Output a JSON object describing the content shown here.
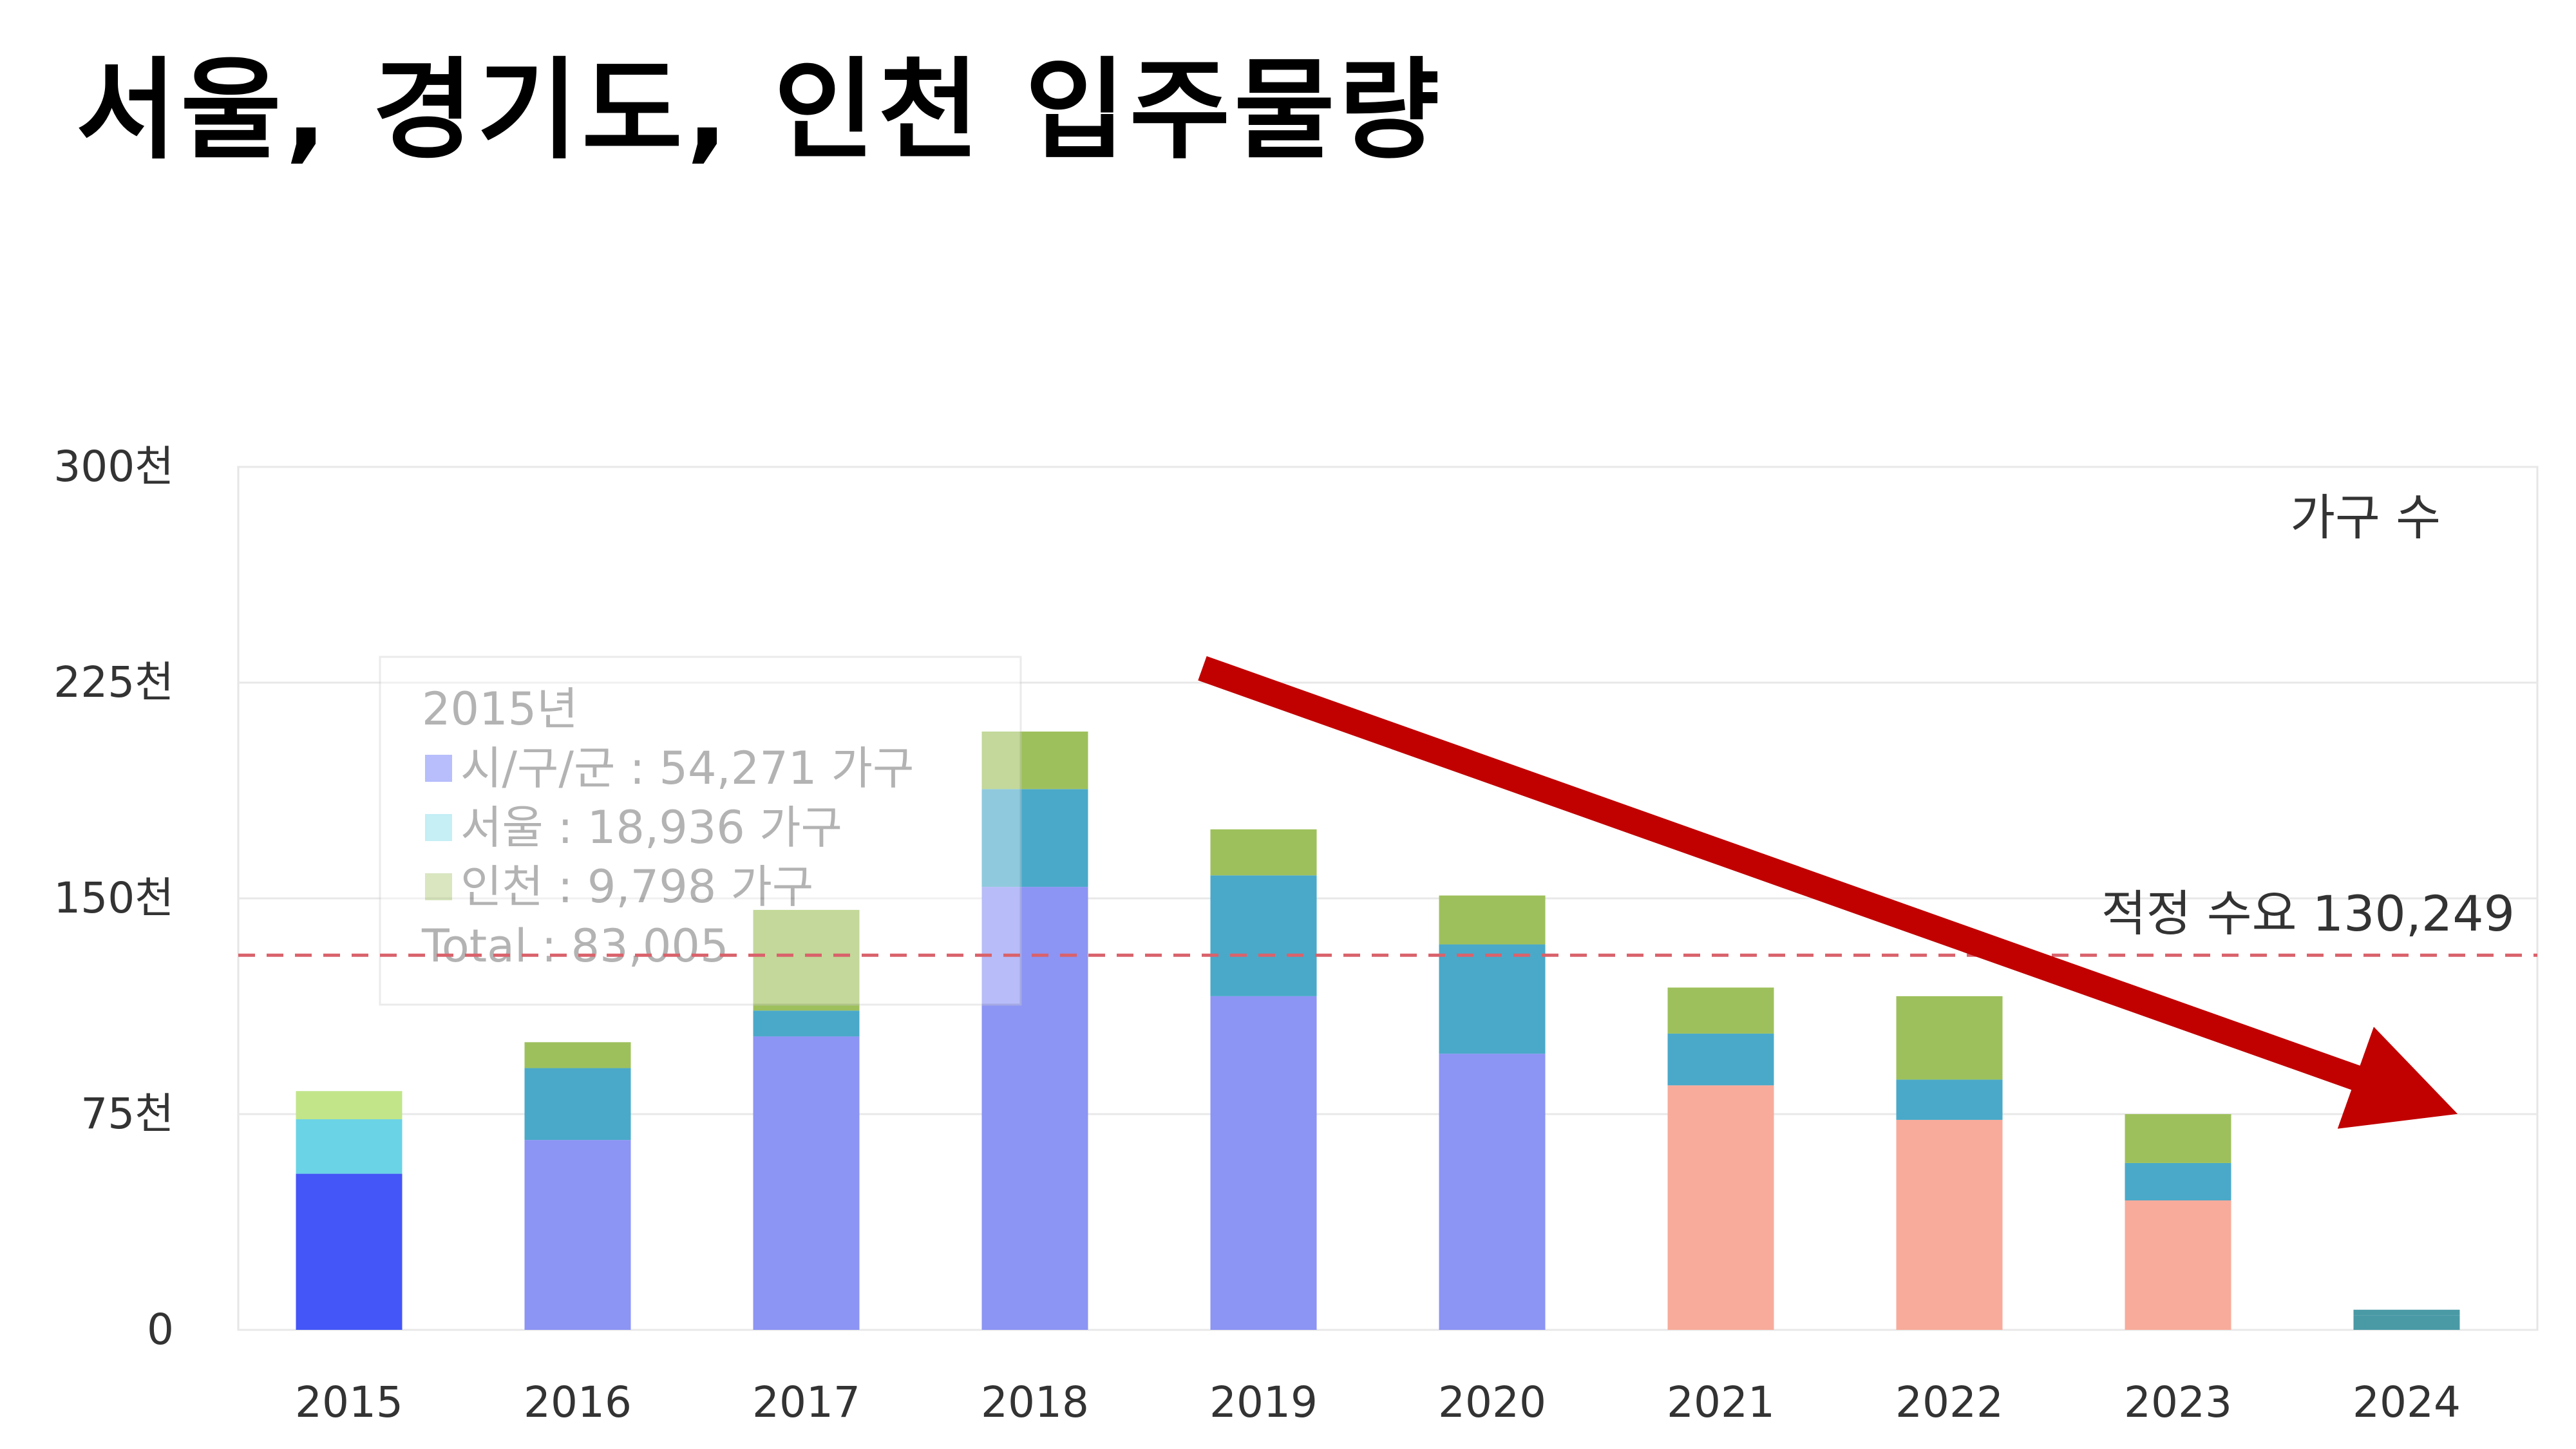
{
  "page": {
    "title": "서울, 경기도, 인천 입주물량"
  },
  "chart_data": {
    "type": "bar",
    "stacked": true,
    "categories": [
      "2015",
      "2016",
      "2017",
      "2018",
      "2019",
      "2020",
      "2021",
      "2022",
      "2023",
      "2024"
    ],
    "series": [
      {
        "name": "시/구/군",
        "values": [
          54271,
          66000,
          102000,
          154000,
          116000,
          96000,
          85000,
          73000,
          45000,
          0
        ]
      },
      {
        "name": "서울",
        "values": [
          18936,
          25000,
          9000,
          34000,
          42000,
          38000,
          18000,
          14000,
          13000,
          5000
        ]
      },
      {
        "name": "인천",
        "values": [
          9798,
          9000,
          35000,
          20000,
          16000,
          17000,
          16000,
          29000,
          17000,
          2000
        ]
      }
    ],
    "bar_colors": [
      [
        "#4456f7",
        "#6ad3e6",
        "#c2e58a"
      ],
      [
        "#8c94f4",
        "#4aa9c9",
        "#9ec05c"
      ],
      [
        "#8c94f4",
        "#4aa9c9",
        "#9ec05c"
      ],
      [
        "#8c94f4",
        "#4aa9c9",
        "#9ec05c"
      ],
      [
        "#8c94f4",
        "#4aa9c9",
        "#9ec05c"
      ],
      [
        "#8c94f4",
        "#4aa9c9",
        "#9ec05c"
      ],
      [
        "#f8ab9b",
        "#4aa9c9",
        "#9ec05c"
      ],
      [
        "#f8ab9b",
        "#4aa9c9",
        "#9ec05c"
      ],
      [
        "#f8ab9b",
        "#4aa9c9",
        "#9ec05c"
      ],
      [
        "#f8ab9b",
        "#4a9aa6",
        "#4a9aa6"
      ]
    ],
    "y_ticks": [
      0,
      75000,
      150000,
      225000,
      300000
    ],
    "y_tick_labels": [
      "0",
      "75천",
      "150천",
      "225천",
      "300천"
    ],
    "ylim": [
      0,
      300000
    ],
    "unit_label": "가구 수",
    "reference_line": {
      "value": 130249,
      "label": "적정 수요 130,249",
      "color": "#d9626b"
    },
    "trend_arrow": {
      "from": [
        "2018",
        230000
      ],
      "to": [
        "2024",
        78000
      ],
      "color": "#c10000"
    },
    "tooltip": {
      "lines": [
        "2015년",
        "시/구/군 : 54,271 가구",
        "서울 : 18,936 가구",
        "인천 : 9,798 가구",
        "Total : 83,005"
      ],
      "swatch_colors": [
        "#4456f7",
        "#6ad3e6",
        "#9ec05c"
      ]
    },
    "grid": true
  }
}
